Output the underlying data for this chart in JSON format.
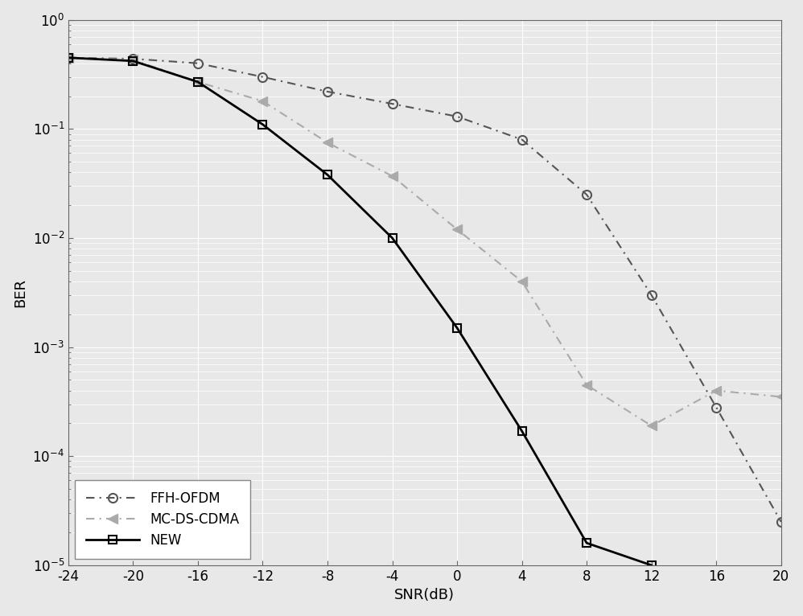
{
  "title": "",
  "xlabel": "SNR(dB)",
  "ylabel": "BER",
  "xlim": [
    -24,
    20
  ],
  "ylim_log": [
    1e-05,
    1.0
  ],
  "xticks": [
    -24,
    -20,
    -16,
    -12,
    -8,
    -4,
    0,
    4,
    8,
    12,
    16,
    20
  ],
  "background_color": "#e8e8e8",
  "grid_color": "#ffffff",
  "ffh_ofdm": {
    "x": [
      -24,
      -20,
      -16,
      -12,
      -8,
      -4,
      0,
      4,
      8,
      12,
      16,
      20
    ],
    "y": [
      0.45,
      0.44,
      0.4,
      0.3,
      0.22,
      0.17,
      0.13,
      0.08,
      0.025,
      0.003,
      0.00028,
      2.5e-05
    ],
    "color": "#555555",
    "label": "FFH-OFDM",
    "linewidth": 1.5,
    "markersize": 8
  },
  "mc_ds_cdma": {
    "x": [
      -24,
      -20,
      -16,
      -12,
      -8,
      -4,
      0,
      4,
      8,
      12,
      16,
      20
    ],
    "y": [
      0.45,
      0.43,
      0.27,
      0.18,
      0.075,
      0.037,
      0.012,
      0.004,
      0.00045,
      0.00019,
      0.0004,
      0.00035
    ],
    "color": "#aaaaaa",
    "label": "MC-DS-CDMA",
    "linewidth": 1.5,
    "markersize": 8
  },
  "new": {
    "x": [
      -24,
      -20,
      -16,
      -12,
      -8,
      -4,
      0,
      4,
      8,
      12
    ],
    "y": [
      0.45,
      0.42,
      0.27,
      0.11,
      0.038,
      0.01,
      0.0015,
      0.00017,
      1.6e-05,
      1e-05
    ],
    "color": "#000000",
    "label": "NEW",
    "linewidth": 2.0,
    "markersize": 7
  }
}
